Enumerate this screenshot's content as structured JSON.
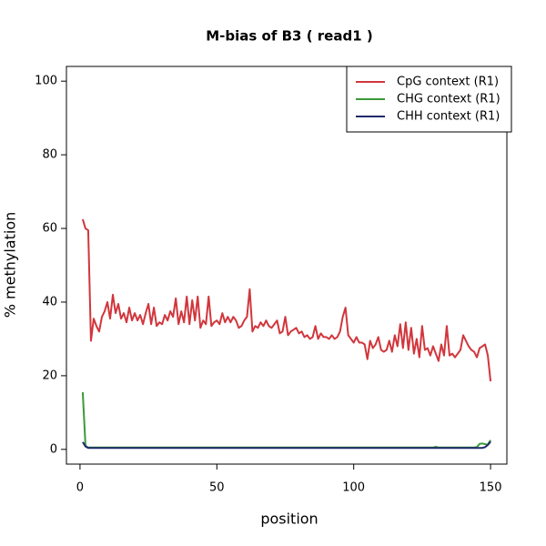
{
  "chart_data": {
    "type": "line",
    "title": "M-bias of  B3   ( read1 )",
    "x_label": "position",
    "y_label": "% methylation",
    "x": [
      1,
      2,
      3,
      4,
      5,
      6,
      7,
      8,
      9,
      10,
      11,
      12,
      13,
      14,
      15,
      16,
      17,
      18,
      19,
      20,
      21,
      22,
      23,
      24,
      25,
      26,
      27,
      28,
      29,
      30,
      31,
      32,
      33,
      34,
      35,
      36,
      37,
      38,
      39,
      40,
      41,
      42,
      43,
      44,
      45,
      46,
      47,
      48,
      49,
      50,
      51,
      52,
      53,
      54,
      55,
      56,
      57,
      58,
      59,
      60,
      61,
      62,
      63,
      64,
      65,
      66,
      67,
      68,
      69,
      70,
      71,
      72,
      73,
      74,
      75,
      76,
      77,
      78,
      79,
      80,
      81,
      82,
      83,
      84,
      85,
      86,
      87,
      88,
      89,
      90,
      91,
      92,
      93,
      94,
      95,
      96,
      97,
      98,
      99,
      100,
      101,
      102,
      103,
      104,
      105,
      106,
      107,
      108,
      109,
      110,
      111,
      112,
      113,
      114,
      115,
      116,
      117,
      118,
      119,
      120,
      121,
      122,
      123,
      124,
      125,
      126,
      127,
      128,
      129,
      130,
      131,
      132,
      133,
      134,
      135,
      136,
      137,
      138,
      139,
      140,
      141,
      142,
      143,
      144,
      145,
      146,
      147,
      148,
      149,
      150
    ],
    "series": [
      {
        "name": "CpG context (R1)",
        "color": "#d1363c",
        "values": [
          62.5,
          60,
          59.5,
          29.5,
          35.5,
          33.5,
          32,
          36,
          37.5,
          40,
          35.5,
          42,
          37,
          39.5,
          35.5,
          37,
          34.5,
          38.5,
          35,
          37,
          35,
          36.5,
          34,
          37,
          39.5,
          34,
          38.5,
          33.5,
          34.5,
          34,
          36.5,
          35,
          37.5,
          36,
          41,
          34,
          37.5,
          34.5,
          41.5,
          34,
          40.5,
          35,
          41.5,
          33,
          35,
          34,
          41.5,
          33.5,
          34.5,
          35,
          34,
          37,
          34.5,
          36,
          34.5,
          36,
          35,
          33,
          33.5,
          35,
          36,
          43.5,
          32,
          33.5,
          33,
          34.5,
          33.5,
          35,
          33.5,
          33,
          34,
          35,
          31.5,
          32,
          36,
          31,
          32,
          32.5,
          33,
          31.5,
          32,
          30.5,
          31,
          30,
          30.5,
          33.5,
          30,
          31.5,
          30.5,
          30.5,
          30,
          31,
          30,
          30.5,
          32,
          36,
          38.5,
          31,
          30,
          29,
          30.5,
          29,
          29,
          28.5,
          24.5,
          29.5,
          27.5,
          28.5,
          30.5,
          27,
          26.5,
          27,
          29.5,
          26.5,
          31,
          28,
          34,
          27.5,
          34.5,
          27,
          33,
          26,
          30,
          25,
          33.5,
          27,
          27.5,
          25.5,
          28,
          26,
          24,
          28.5,
          25.5,
          33.5,
          25.5,
          26,
          25,
          26,
          27,
          31,
          29.5,
          28,
          27,
          26.5,
          25,
          27.5,
          28,
          28.5,
          25.5,
          18.5
        ]
      },
      {
        "name": "CHG context (R1)",
        "color": "#3a9a3a",
        "values": [
          15.5,
          1,
          0.5,
          0.5,
          0.5,
          0.5,
          0.5,
          0.5,
          0.5,
          0.5,
          0.5,
          0.5,
          0.5,
          0.5,
          0.5,
          0.5,
          0.5,
          0.5,
          0.5,
          0.5,
          0.5,
          0.5,
          0.5,
          0.5,
          0.5,
          0.5,
          0.5,
          0.5,
          0.5,
          0.5,
          0.5,
          0.5,
          0.5,
          0.5,
          0.5,
          0.5,
          0.5,
          0.5,
          0.5,
          0.5,
          0.5,
          0.5,
          0.5,
          0.5,
          0.5,
          0.5,
          0.5,
          0.5,
          0.5,
          0.5,
          0.5,
          0.5,
          0.5,
          0.5,
          0.5,
          0.5,
          0.5,
          0.5,
          0.5,
          0.5,
          0.5,
          0.5,
          0.5,
          0.5,
          0.5,
          0.5,
          0.5,
          0.5,
          0.5,
          0.5,
          0.5,
          0.5,
          0.5,
          0.5,
          0.5,
          0.5,
          0.5,
          0.5,
          0.5,
          0.5,
          0.5,
          0.5,
          0.5,
          0.5,
          0.5,
          0.5,
          0.5,
          0.5,
          0.5,
          0.5,
          0.5,
          0.5,
          0.5,
          0.5,
          0.5,
          0.5,
          0.5,
          0.5,
          0.5,
          0.5,
          0.5,
          0.5,
          0.5,
          0.5,
          0.5,
          0.5,
          0.5,
          0.5,
          0.5,
          0.5,
          0.5,
          0.5,
          0.5,
          0.5,
          0.5,
          0.5,
          0.5,
          0.5,
          0.5,
          0.5,
          0.5,
          0.5,
          0.5,
          0.5,
          0.5,
          0.5,
          0.5,
          0.5,
          0.5,
          0.7,
          0.5,
          0.5,
          0.5,
          0.5,
          0.5,
          0.5,
          0.5,
          0.5,
          0.5,
          0.5,
          0.5,
          0.5,
          0.5,
          0.5,
          0.6,
          1.5,
          1.6,
          1.4,
          1.3,
          2.5
        ]
      },
      {
        "name": "CHH context (R1)",
        "color": "#1f2a6b",
        "values": [
          2,
          0.8,
          0.4,
          0.4,
          0.4,
          0.4,
          0.4,
          0.4,
          0.4,
          0.4,
          0.4,
          0.4,
          0.4,
          0.4,
          0.4,
          0.4,
          0.4,
          0.4,
          0.4,
          0.4,
          0.4,
          0.4,
          0.4,
          0.4,
          0.4,
          0.4,
          0.4,
          0.4,
          0.4,
          0.4,
          0.4,
          0.4,
          0.4,
          0.4,
          0.4,
          0.4,
          0.4,
          0.4,
          0.4,
          0.4,
          0.4,
          0.4,
          0.4,
          0.4,
          0.4,
          0.4,
          0.4,
          0.4,
          0.4,
          0.4,
          0.4,
          0.4,
          0.4,
          0.4,
          0.4,
          0.4,
          0.4,
          0.4,
          0.4,
          0.4,
          0.4,
          0.4,
          0.4,
          0.4,
          0.4,
          0.4,
          0.4,
          0.4,
          0.4,
          0.4,
          0.4,
          0.4,
          0.4,
          0.4,
          0.4,
          0.4,
          0.4,
          0.4,
          0.4,
          0.4,
          0.4,
          0.4,
          0.4,
          0.4,
          0.4,
          0.4,
          0.4,
          0.4,
          0.4,
          0.4,
          0.4,
          0.4,
          0.4,
          0.4,
          0.4,
          0.4,
          0.4,
          0.4,
          0.4,
          0.4,
          0.4,
          0.4,
          0.4,
          0.4,
          0.4,
          0.4,
          0.4,
          0.4,
          0.4,
          0.4,
          0.4,
          0.4,
          0.4,
          0.4,
          0.4,
          0.4,
          0.4,
          0.4,
          0.4,
          0.4,
          0.4,
          0.4,
          0.4,
          0.4,
          0.4,
          0.4,
          0.4,
          0.4,
          0.4,
          0.4,
          0.4,
          0.4,
          0.4,
          0.4,
          0.4,
          0.4,
          0.4,
          0.4,
          0.4,
          0.4,
          0.4,
          0.4,
          0.4,
          0.4,
          0.4,
          0.4,
          0.4,
          0.6,
          1.2,
          2.1
        ]
      }
    ],
    "xlim": [
      -4.96,
      155.96
    ],
    "xticks": [
      0,
      50,
      100,
      150
    ],
    "ylim": [
      -4,
      104
    ],
    "yticks": [
      0,
      20,
      40,
      60,
      80,
      100
    ],
    "legend": "topright"
  }
}
